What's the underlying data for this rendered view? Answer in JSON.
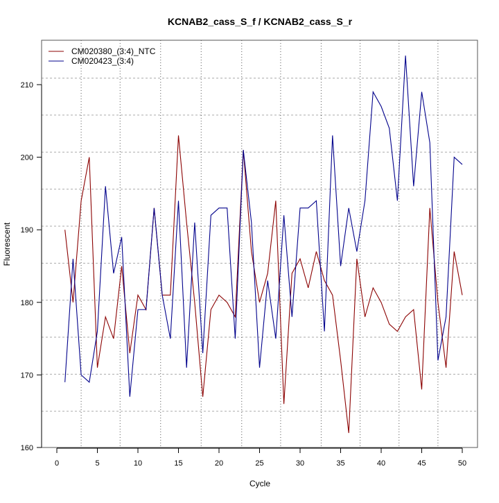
{
  "chart_data": {
    "type": "line",
    "title": "KCNAB2_cass_S_f / KCNAB2_cass_S_r",
    "xlabel": "Cycle",
    "ylabel": "Fluorescent",
    "xlim": [
      -2,
      52
    ],
    "ylim": [
      159.4,
      215.6
    ],
    "xticks": [
      0,
      5,
      10,
      15,
      20,
      25,
      30,
      35,
      40,
      45,
      50
    ],
    "yticks": [
      160,
      170,
      180,
      190,
      200,
      210
    ],
    "grid": true,
    "threshold_cycles": [
      3.0,
      7.8,
      12.8,
      17.8,
      22.8,
      27.6,
      32.6,
      37.4,
      42.2,
      47.0
    ],
    "legend_position": "top-left",
    "x": [
      1,
      2,
      3,
      4,
      5,
      6,
      7,
      8,
      9,
      10,
      11,
      12,
      13,
      14,
      15,
      16,
      17,
      18,
      19,
      20,
      21,
      22,
      23,
      24,
      25,
      26,
      27,
      28,
      29,
      30,
      31,
      32,
      33,
      34,
      35,
      36,
      37,
      38,
      39,
      40,
      41,
      42,
      43,
      44,
      45,
      46,
      47,
      48,
      49,
      50
    ],
    "series": [
      {
        "name": "CM020380_(3:4)_NTC",
        "color": "#8b0000",
        "values": [
          190,
          180,
          194,
          200,
          171,
          178,
          175,
          185,
          173,
          181,
          179,
          193,
          181,
          181,
          203,
          191,
          180,
          167,
          179,
          181,
          180,
          178,
          201,
          187,
          180,
          184,
          194,
          166,
          184,
          186,
          182,
          187,
          183,
          181,
          172,
          162,
          186,
          178,
          182,
          180,
          177,
          176,
          178,
          179,
          168,
          193,
          180,
          171,
          187,
          181
        ]
      },
      {
        "name": "CM020423_(3:4)",
        "color": "#00008b",
        "values": [
          169,
          186,
          170,
          169,
          176,
          196,
          184,
          189,
          167,
          179,
          179,
          193,
          181,
          175,
          194,
          171,
          191,
          173,
          192,
          193,
          193,
          175,
          201,
          191,
          171,
          183,
          175,
          192,
          178,
          193,
          193,
          194,
          176,
          203,
          185,
          193,
          187,
          194,
          209,
          207,
          204,
          194,
          214,
          196,
          209,
          202,
          172,
          178,
          200,
          199
        ]
      }
    ]
  }
}
